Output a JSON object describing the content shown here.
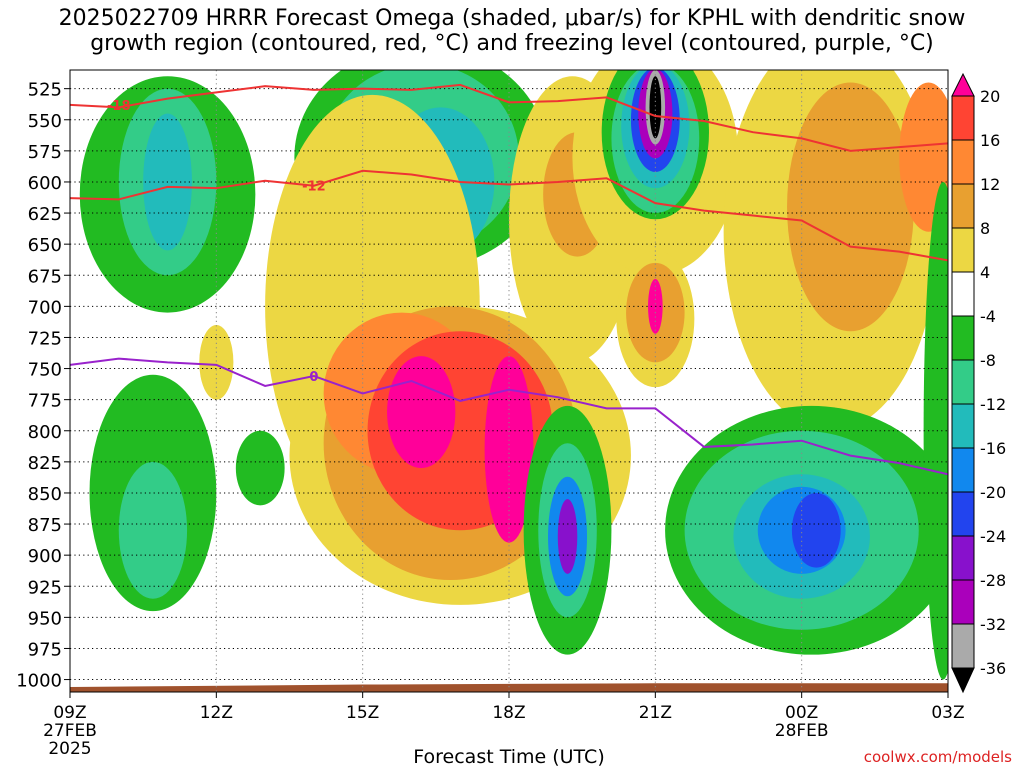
{
  "title_line1": "2025022709 HRRR Forecast Omega (shaded, μbar/s) for KPHL with dendritic snow",
  "title_line2": "growth region (contoured, red, °C) and freezing level (contoured, purple, °C)",
  "xlabel": "Forecast Time (UTC)",
  "credit": "coolwx.com/models",
  "chart_data": {
    "type": "time-height cross section (filled contour)",
    "y_axis": {
      "quantity": "pressure (hPa)",
      "range": [
        1010,
        510
      ],
      "ticks": [
        525,
        550,
        575,
        600,
        625,
        650,
        675,
        700,
        725,
        750,
        775,
        800,
        825,
        850,
        875,
        900,
        925,
        950,
        975,
        1000
      ]
    },
    "x_axis": {
      "range": [
        "2025-02-27 09Z",
        "2025-02-28 03Z"
      ],
      "ticks": [
        {
          "hour": 9,
          "label": "09Z",
          "sub1": "27FEB",
          "sub2": "2025"
        },
        {
          "hour": 12,
          "label": "12Z",
          "sub1": "",
          "sub2": ""
        },
        {
          "hour": 15,
          "label": "15Z",
          "sub1": "",
          "sub2": ""
        },
        {
          "hour": 18,
          "label": "18Z",
          "sub1": "",
          "sub2": ""
        },
        {
          "hour": 21,
          "label": "21Z",
          "sub1": "",
          "sub2": ""
        },
        {
          "hour": 24,
          "label": "00Z",
          "sub1": "28FEB",
          "sub2": ""
        },
        {
          "hour": 27,
          "label": "03Z",
          "sub1": "",
          "sub2": ""
        }
      ],
      "grid": "dotted"
    },
    "colorbar": {
      "labels": [
        "20",
        "16",
        "12",
        "8",
        "4",
        "-4",
        "-8",
        "-12",
        "-16",
        "-20",
        "-24",
        "-28",
        "-32",
        "-36"
      ],
      "colors": [
        "#ff0099",
        "#ff4433",
        "#ff8833",
        "#e8a030",
        "#ecd743",
        "#ffffff",
        "#22bb22",
        "#33cc88",
        "#22bbbb",
        "#1188ee",
        "#2244ee",
        "#8811cc",
        "#aa00bb",
        "#aaaaaa",
        "#000000"
      ]
    },
    "contours": [
      {
        "label": "-18",
        "color": "#ee3333",
        "points": [
          [
            9,
            538
          ],
          [
            10,
            540
          ],
          [
            11,
            533
          ],
          [
            12,
            528
          ],
          [
            13,
            523
          ],
          [
            14,
            526
          ],
          [
            15,
            525
          ],
          [
            16,
            526
          ],
          [
            17,
            522
          ],
          [
            18,
            536
          ],
          [
            19,
            535
          ],
          [
            20,
            532
          ],
          [
            21,
            547
          ],
          [
            22,
            551
          ],
          [
            23,
            560
          ],
          [
            24,
            565
          ],
          [
            25,
            575
          ],
          [
            26,
            572
          ],
          [
            27,
            569
          ]
        ]
      },
      {
        "label": "-12",
        "color": "#ee3333",
        "points": [
          [
            9,
            613
          ],
          [
            10,
            614
          ],
          [
            11,
            604
          ],
          [
            12,
            605
          ],
          [
            13,
            599
          ],
          [
            14,
            603
          ],
          [
            15,
            591
          ],
          [
            16,
            594
          ],
          [
            17,
            600
          ],
          [
            18,
            602
          ],
          [
            19,
            600
          ],
          [
            20,
            597
          ],
          [
            21,
            617
          ],
          [
            22,
            623
          ],
          [
            23,
            627
          ],
          [
            24,
            631
          ],
          [
            25,
            652
          ],
          [
            26,
            656
          ],
          [
            27,
            663
          ]
        ]
      },
      {
        "label": "0",
        "color": "#9922cc",
        "points": [
          [
            9,
            747
          ],
          [
            10,
            742
          ],
          [
            11,
            745
          ],
          [
            12,
            747
          ],
          [
            13,
            764
          ],
          [
            14,
            756
          ],
          [
            15,
            770
          ],
          [
            16,
            760
          ],
          [
            17,
            776
          ],
          [
            18,
            767
          ],
          [
            19,
            773
          ],
          [
            20,
            782
          ],
          [
            21,
            782
          ],
          [
            22,
            813
          ],
          [
            23,
            811
          ],
          [
            24,
            808
          ],
          [
            25,
            820
          ],
          [
            26,
            826
          ],
          [
            27,
            835
          ]
        ]
      }
    ],
    "ground": {
      "color": "#a0522d",
      "top_hPa": [
        [
          9,
          1006
        ],
        [
          15,
          1004
        ],
        [
          21,
          1003
        ],
        [
          27,
          1003
        ]
      ]
    }
  }
}
